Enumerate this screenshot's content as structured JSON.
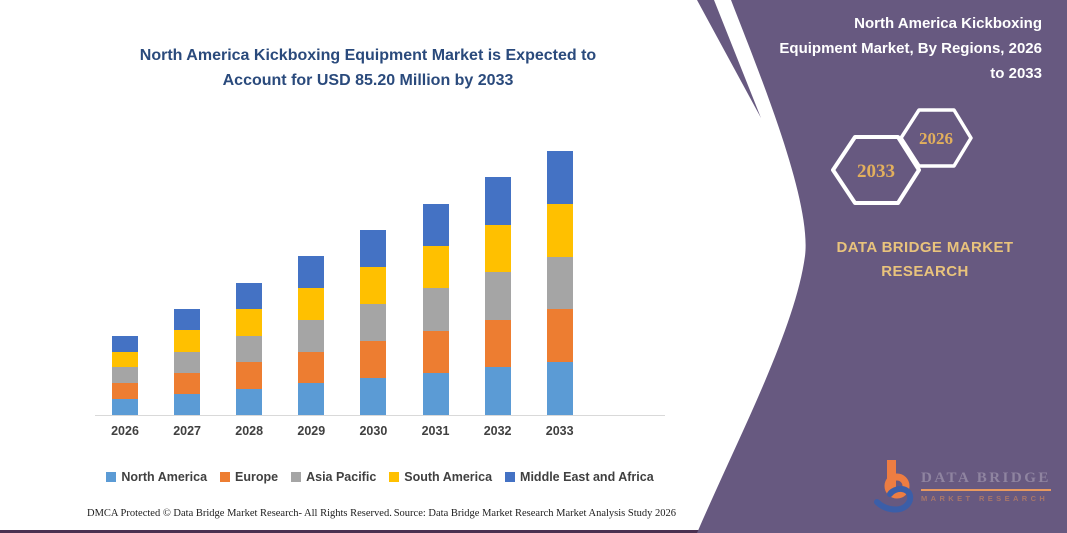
{
  "chart": {
    "title": "North America Kickboxing Equipment Market is Expected to\nAccount for USD 85.20 Million by 2033"
  },
  "chart_data": {
    "type": "bar",
    "stacked": true,
    "title": "North America Kickboxing Equipment Market is Expected to Account for USD 85.20 Million by 2033",
    "unit": "USD Million",
    "categories": [
      "2026",
      "2027",
      "2028",
      "2029",
      "2030",
      "2031",
      "2032",
      "2033"
    ],
    "series": [
      {
        "name": "North America",
        "color": "#5B9BD5",
        "values": [
          5.12,
          6.82,
          8.53,
          10.23,
          11.93,
          13.63,
          15.34,
          17.04
        ]
      },
      {
        "name": "Europe",
        "color": "#ED7D31",
        "values": [
          5.12,
          6.82,
          8.53,
          10.23,
          11.93,
          13.63,
          15.34,
          17.04
        ]
      },
      {
        "name": "Asia Pacific",
        "color": "#A5A5A5",
        "values": [
          5.12,
          6.82,
          8.53,
          10.23,
          11.93,
          13.63,
          15.34,
          17.04
        ]
      },
      {
        "name": "South America",
        "color": "#FFC000",
        "values": [
          5.12,
          6.82,
          8.53,
          10.23,
          11.93,
          13.63,
          15.34,
          17.04
        ]
      },
      {
        "name": "Middle East and Africa",
        "color": "#4472C4",
        "values": [
          5.12,
          6.82,
          8.53,
          10.23,
          11.93,
          13.63,
          15.34,
          17.04
        ]
      }
    ],
    "totals": [
      25.6,
      34.1,
      42.6,
      51.2,
      59.7,
      68.2,
      76.7,
      85.2
    ],
    "ylim": [
      0,
      90
    ],
    "grid": false,
    "value_axis_visible": false,
    "legend_position": "bottom"
  },
  "side_panel": {
    "title": "North America Kickboxing\nEquipment Market, By Regions, 2026\nto 2033",
    "hexagon_years": [
      "2033",
      "2026"
    ],
    "brand_name": "DATA BRIDGE MARKET\nRESEARCH",
    "colors": {
      "panel_bg": "#675980",
      "accent_gold": "#E2AF5D"
    }
  },
  "logo": {
    "name_line1": "DATA BRIDGE",
    "name_line2": "MARKET RESEARCH"
  },
  "footer": {
    "left": "DMCA Protected © Data Bridge Market Research-  All Rights Reserved.",
    "right": "Source: Data Bridge Market Research  Market Analysis Study 2026"
  }
}
